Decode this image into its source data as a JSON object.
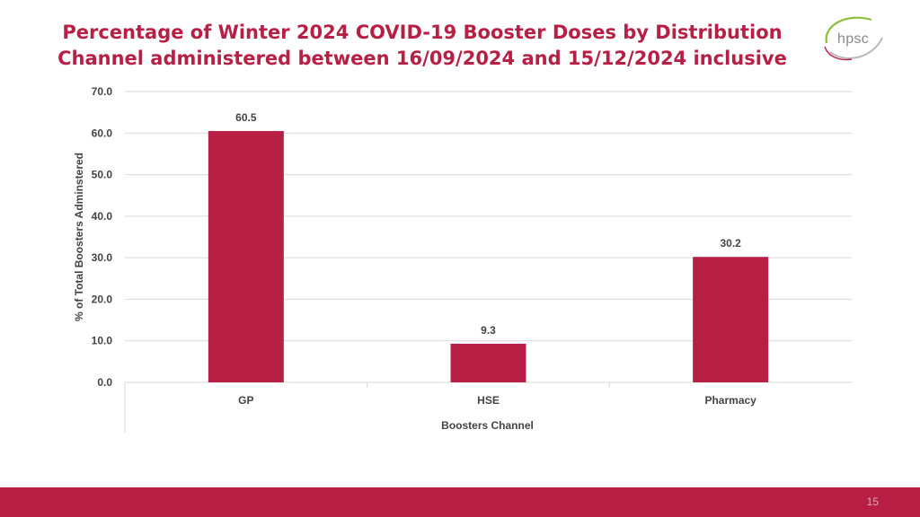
{
  "slide": {
    "title_line1": "Percentage of Winter 2024 COVID-19 Booster Doses by Distribution",
    "title_line2": "Channel administered between 16/09/2024 and 15/12/2024 inclusive",
    "logo_text": "hpsc",
    "page_number": "15",
    "accent_color": "#b71f45"
  },
  "chart_data": {
    "type": "bar",
    "categories": [
      "GP",
      "HSE",
      "Pharmacy"
    ],
    "values": [
      60.5,
      9.3,
      30.2
    ],
    "data_labels": [
      "60.5",
      "9.3",
      "30.2"
    ],
    "xlabel": "Boosters  Channel",
    "ylabel": "% of Total Boosters Adminstered",
    "ylim": [
      0,
      70
    ],
    "yticks": [
      0,
      10,
      20,
      30,
      40,
      50,
      60,
      70
    ],
    "ytick_labels": [
      "0.0",
      "10.0",
      "20.0",
      "30.0",
      "40.0",
      "50.0",
      "60.0",
      "70.0"
    ],
    "grid": true,
    "bar_color": "#b71f45",
    "legend": "none"
  }
}
